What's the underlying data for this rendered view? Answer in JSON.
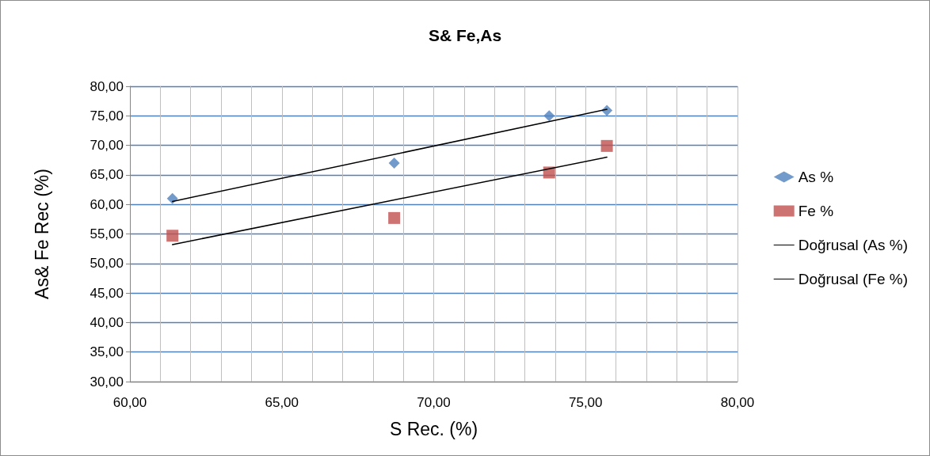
{
  "chart_data": {
    "type": "scatter",
    "title": "S& Fe,As",
    "xlabel": "S Rec. (%)",
    "ylabel": "As& Fe Rec (%)",
    "series": [
      {
        "name": "As %",
        "marker": "diamond",
        "color": "#4f81bd",
        "x": [
          61.4,
          68.7,
          73.8,
          75.7
        ],
        "values": [
          61.0,
          67.0,
          75.0,
          75.9
        ]
      },
      {
        "name": "Fe %",
        "marker": "square",
        "color": "#c0504d",
        "x": [
          61.4,
          68.7,
          73.8,
          75.7
        ],
        "values": [
          54.7,
          57.7,
          65.4,
          69.9
        ]
      },
      {
        "name": "Doğrusal (As %)",
        "type": "line",
        "marker": "none",
        "line_style": "solid",
        "color": "#000000",
        "x": [
          61.4,
          75.7
        ],
        "values": [
          60.5,
          76.1
        ]
      },
      {
        "name": "Doğrusal (Fe %)",
        "type": "line",
        "marker": "none",
        "line_style": "solid",
        "color": "#000000",
        "x": [
          61.4,
          75.7
        ],
        "values": [
          53.2,
          68.0
        ]
      }
    ],
    "xlim": [
      60,
      80
    ],
    "xticks": [
      {
        "value": 60,
        "label": "60,00"
      },
      {
        "value": 61,
        "label": null
      },
      {
        "value": 62,
        "label": null
      },
      {
        "value": 63,
        "label": null
      },
      {
        "value": 64,
        "label": null
      },
      {
        "value": 65,
        "label": "65,00"
      },
      {
        "value": 66,
        "label": null
      },
      {
        "value": 67,
        "label": null
      },
      {
        "value": 68,
        "label": null
      },
      {
        "value": 69,
        "label": null
      },
      {
        "value": 70,
        "label": "70,00"
      },
      {
        "value": 71,
        "label": null
      },
      {
        "value": 72,
        "label": null
      },
      {
        "value": 73,
        "label": null
      },
      {
        "value": 74,
        "label": null
      },
      {
        "value": 75,
        "label": "75,00"
      },
      {
        "value": 76,
        "label": null
      },
      {
        "value": 77,
        "label": null
      },
      {
        "value": 78,
        "label": null
      },
      {
        "value": 79,
        "label": null
      },
      {
        "value": 80,
        "label": "80,00"
      }
    ],
    "ylim": [
      30,
      80
    ],
    "yticks": [
      {
        "value": 30,
        "label": "30,00"
      },
      {
        "value": 35,
        "label": "35,00"
      },
      {
        "value": 40,
        "label": "40,00"
      },
      {
        "value": 45,
        "label": "45,00"
      },
      {
        "value": 50,
        "label": "50,00"
      },
      {
        "value": 55,
        "label": "55,00"
      },
      {
        "value": 60,
        "label": "60,00"
      },
      {
        "value": 65,
        "label": "65,00"
      },
      {
        "value": 70,
        "label": "70,00"
      },
      {
        "value": 75,
        "label": "75,00"
      },
      {
        "value": 80,
        "label": "80,00"
      }
    ],
    "grid": true,
    "legend": "right"
  }
}
